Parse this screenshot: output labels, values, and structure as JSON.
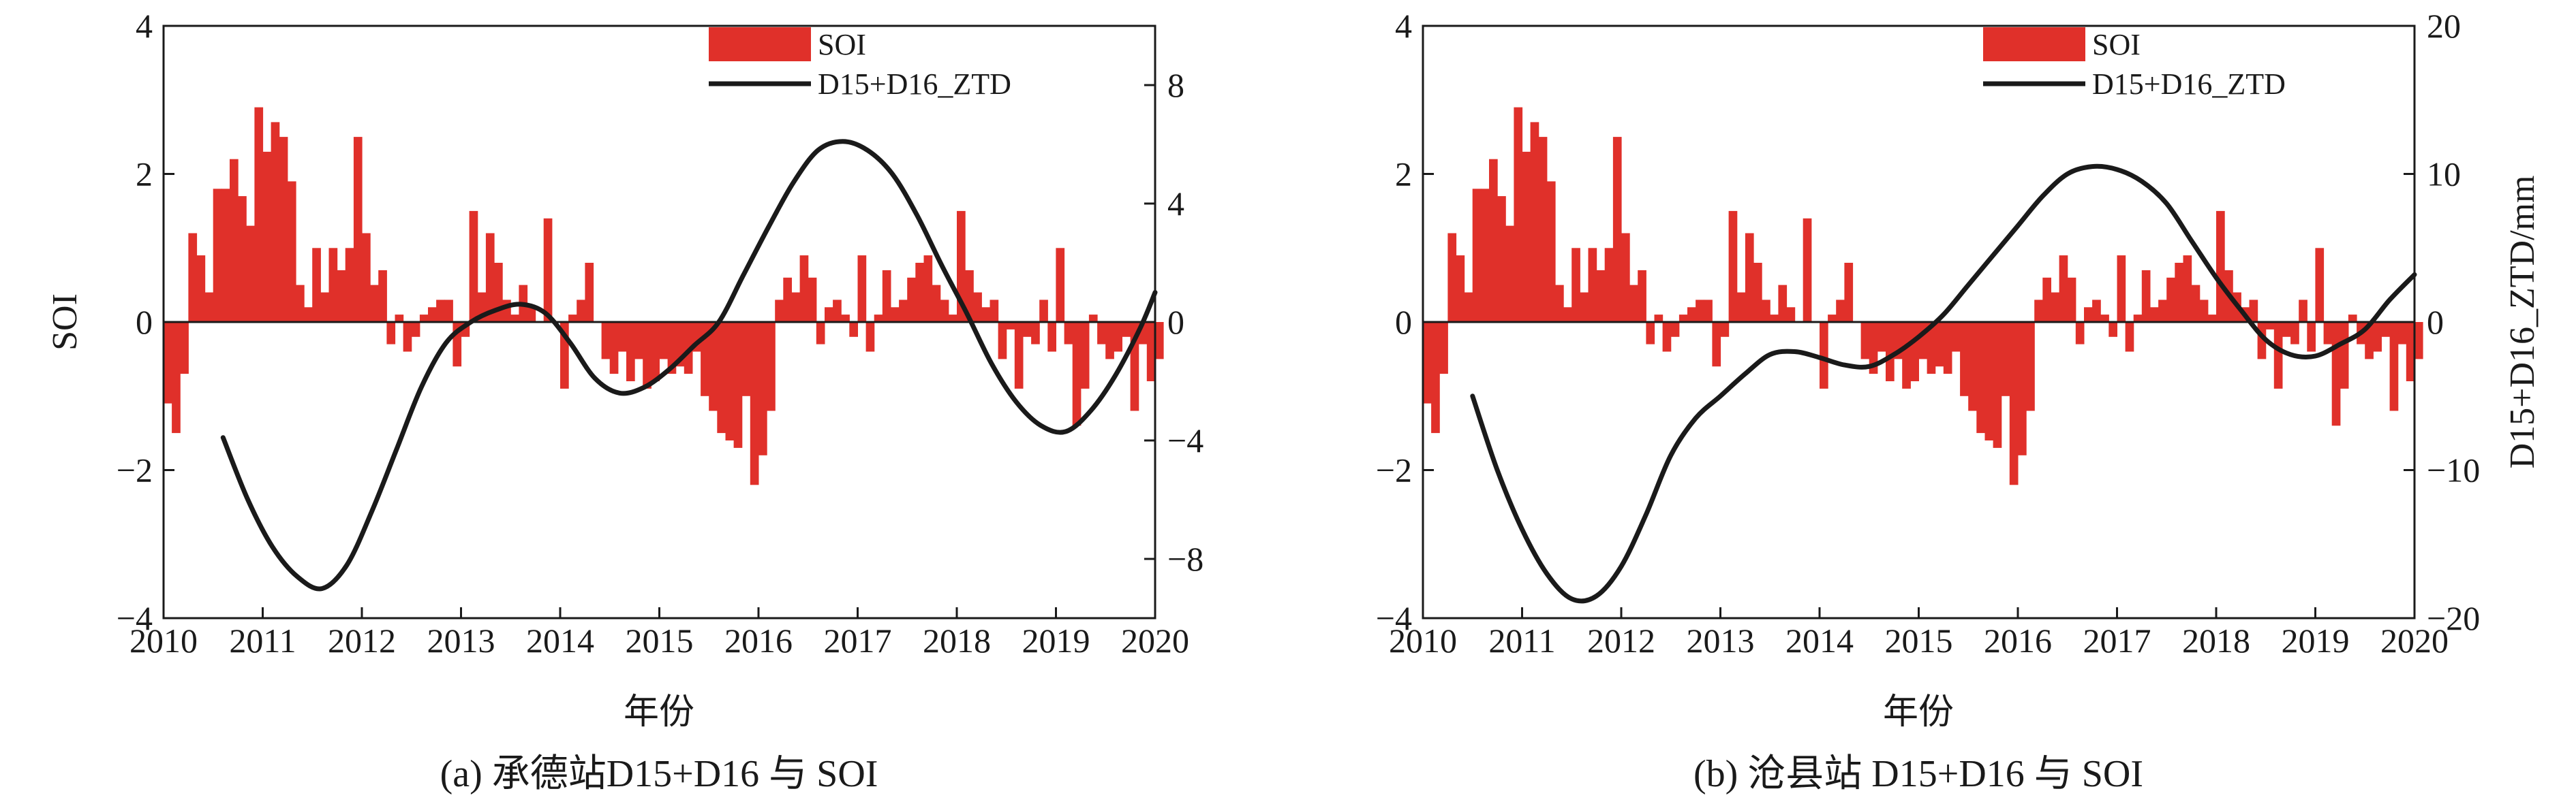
{
  "chart_data": [
    {
      "type": "bar+line",
      "caption": "(a) 承德站D15+D16 与 SOI",
      "xlabel": "年份",
      "ylabel_left": "SOI",
      "ylabel_right": "",
      "x_ticks": [
        "2010",
        "2011",
        "2012",
        "2013",
        "2014",
        "2015",
        "2016",
        "2017",
        "2018",
        "2019",
        "2020"
      ],
      "xlim": [
        2010,
        2020
      ],
      "ylim_left": [
        -4,
        4
      ],
      "y_ticks_left": [
        {
          "v": 4,
          "label": "4"
        },
        {
          "v": 2,
          "label": "2"
        },
        {
          "v": 0,
          "label": "0"
        },
        {
          "v": -2,
          "label": "−2"
        },
        {
          "v": -4,
          "label": "−4"
        }
      ],
      "ylim_right": [
        -10,
        10
      ],
      "y_ticks_right": [
        {
          "v": 8,
          "label": "8"
        },
        {
          "v": 4,
          "label": "4"
        },
        {
          "v": 0,
          "label": "0"
        },
        {
          "v": -4,
          "label": "−4"
        },
        {
          "v": -8,
          "label": "−8"
        }
      ],
      "legend": {
        "position": "top-right",
        "bar_label": "SOI",
        "line_label": "D15+D16_ZTD"
      },
      "colors": {
        "bar": "#e0302a",
        "line": "#1a1a1a"
      },
      "series": [
        {
          "name": "SOI",
          "kind": "bar",
          "axis": "left",
          "x_start": 2010.0,
          "x_step": 0.08333,
          "values": [
            -1.1,
            -1.5,
            -0.7,
            1.2,
            0.9,
            0.4,
            1.8,
            1.8,
            2.2,
            1.7,
            1.3,
            2.9,
            2.3,
            2.7,
            2.5,
            1.9,
            0.5,
            0.2,
            1.0,
            0.4,
            1.0,
            0.7,
            1.0,
            2.5,
            1.2,
            0.5,
            0.7,
            -0.3,
            0.1,
            -0.4,
            -0.2,
            0.1,
            0.2,
            0.3,
            0.3,
            -0.6,
            -0.2,
            1.5,
            0.4,
            1.2,
            0.8,
            0.3,
            0.1,
            0.5,
            0.2,
            0.0,
            1.4,
            0.0,
            -0.9,
            0.1,
            0.3,
            0.8,
            0.0,
            -0.5,
            -0.7,
            -0.4,
            -0.8,
            -0.5,
            -0.9,
            -0.8,
            -0.5,
            -0.7,
            -0.6,
            -0.7,
            -0.4,
            -1.0,
            -1.2,
            -1.5,
            -1.6,
            -1.7,
            -1.0,
            -2.2,
            -1.8,
            -1.2,
            0.3,
            0.6,
            0.4,
            0.9,
            0.6,
            -0.3,
            0.2,
            0.3,
            0.1,
            -0.2,
            0.9,
            -0.4,
            0.1,
            0.7,
            0.2,
            0.3,
            0.6,
            0.8,
            0.9,
            0.5,
            0.3,
            0.1,
            1.5,
            0.7,
            0.4,
            0.2,
            0.3,
            -0.5,
            -0.1,
            -0.9,
            -0.2,
            -0.3,
            0.3,
            -0.4,
            1.0,
            -0.3,
            -1.4,
            -0.9,
            0.1,
            -0.3,
            -0.5,
            -0.4,
            -0.2,
            -1.2,
            -0.3,
            -0.8,
            -0.5
          ]
        },
        {
          "name": "D15+D16_ZTD",
          "kind": "line",
          "axis": "right",
          "x": [
            2010.6,
            2010.85,
            2011.1,
            2011.35,
            2011.6,
            2011.85,
            2012.1,
            2012.35,
            2012.6,
            2012.85,
            2013.1,
            2013.35,
            2013.6,
            2013.85,
            2014.1,
            2014.35,
            2014.6,
            2014.85,
            2015.1,
            2015.35,
            2015.6,
            2015.85,
            2016.1,
            2016.35,
            2016.6,
            2016.85,
            2017.1,
            2017.35,
            2017.6,
            2017.85,
            2018.1,
            2018.35,
            2018.6,
            2018.85,
            2019.1,
            2019.35,
            2019.6,
            2019.85,
            2020.0
          ],
          "y": [
            -3.9,
            -6.0,
            -7.6,
            -8.6,
            -9.0,
            -8.2,
            -6.4,
            -4.3,
            -2.2,
            -0.7,
            0.0,
            0.4,
            0.6,
            0.3,
            -0.7,
            -1.9,
            -2.4,
            -2.2,
            -1.6,
            -0.8,
            0.0,
            1.6,
            3.2,
            4.7,
            5.8,
            6.1,
            5.8,
            5.0,
            3.6,
            1.9,
            0.3,
            -1.4,
            -2.7,
            -3.5,
            -3.7,
            -3.0,
            -1.8,
            -0.2,
            1.0
          ]
        }
      ]
    },
    {
      "type": "bar+line",
      "caption": "(b) 沧县站 D15+D16 与 SOI",
      "xlabel": "年份",
      "ylabel_left": "",
      "ylabel_right": "D15+D16_ZTD/mm",
      "x_ticks": [
        "2010",
        "2011",
        "2012",
        "2013",
        "2014",
        "2015",
        "2016",
        "2017",
        "2018",
        "2019",
        "2020"
      ],
      "xlim": [
        2010,
        2020
      ],
      "ylim_left": [
        -4,
        4
      ],
      "y_ticks_left": [
        {
          "v": 4,
          "label": "4"
        },
        {
          "v": 2,
          "label": "2"
        },
        {
          "v": 0,
          "label": "0"
        },
        {
          "v": -2,
          "label": "−2"
        },
        {
          "v": -4,
          "label": "−4"
        }
      ],
      "ylim_right": [
        -20,
        20
      ],
      "y_ticks_right": [
        {
          "v": 20,
          "label": "20"
        },
        {
          "v": 10,
          "label": "10"
        },
        {
          "v": 0,
          "label": "0"
        },
        {
          "v": -10,
          "label": "−10"
        },
        {
          "v": -20,
          "label": "−20"
        }
      ],
      "legend": {
        "position": "top-right",
        "bar_label": "SOI",
        "line_label": "D15+D16_ZTD"
      },
      "colors": {
        "bar": "#e0302a",
        "line": "#1a1a1a"
      },
      "series": [
        {
          "name": "SOI",
          "kind": "bar",
          "axis": "left",
          "x_start": 2010.0,
          "x_step": 0.08333,
          "values": [
            -1.1,
            -1.5,
            -0.7,
            1.2,
            0.9,
            0.4,
            1.8,
            1.8,
            2.2,
            1.7,
            1.3,
            2.9,
            2.3,
            2.7,
            2.5,
            1.9,
            0.5,
            0.2,
            1.0,
            0.4,
            1.0,
            0.7,
            1.0,
            2.5,
            1.2,
            0.5,
            0.7,
            -0.3,
            0.1,
            -0.4,
            -0.2,
            0.1,
            0.2,
            0.3,
            0.3,
            -0.6,
            -0.2,
            1.5,
            0.4,
            1.2,
            0.8,
            0.3,
            0.1,
            0.5,
            0.2,
            0.0,
            1.4,
            0.0,
            -0.9,
            0.1,
            0.3,
            0.8,
            0.0,
            -0.5,
            -0.7,
            -0.4,
            -0.8,
            -0.5,
            -0.9,
            -0.8,
            -0.5,
            -0.7,
            -0.6,
            -0.7,
            -0.4,
            -1.0,
            -1.2,
            -1.5,
            -1.6,
            -1.7,
            -1.0,
            -2.2,
            -1.8,
            -1.2,
            0.3,
            0.6,
            0.4,
            0.9,
            0.6,
            -0.3,
            0.2,
            0.3,
            0.1,
            -0.2,
            0.9,
            -0.4,
            0.1,
            0.7,
            0.2,
            0.3,
            0.6,
            0.8,
            0.9,
            0.5,
            0.3,
            0.1,
            1.5,
            0.7,
            0.4,
            0.2,
            0.3,
            -0.5,
            -0.1,
            -0.9,
            -0.2,
            -0.3,
            0.3,
            -0.4,
            1.0,
            -0.3,
            -1.4,
            -0.9,
            0.1,
            -0.3,
            -0.5,
            -0.4,
            -0.2,
            -1.2,
            -0.3,
            -0.8,
            -0.5
          ]
        },
        {
          "name": "D15+D16_ZTD",
          "kind": "line",
          "axis": "right",
          "x": [
            2010.5,
            2010.75,
            2011.0,
            2011.25,
            2011.5,
            2011.75,
            2012.0,
            2012.25,
            2012.5,
            2012.75,
            2013.0,
            2013.25,
            2013.5,
            2013.75,
            2014.0,
            2014.25,
            2014.5,
            2014.75,
            2015.0,
            2015.25,
            2015.5,
            2015.75,
            2016.0,
            2016.25,
            2016.5,
            2016.75,
            2017.0,
            2017.25,
            2017.5,
            2017.75,
            2018.0,
            2018.25,
            2018.5,
            2018.75,
            2019.0,
            2019.25,
            2019.5,
            2019.75,
            2020.0
          ],
          "y": [
            -5.0,
            -10.0,
            -14.0,
            -17.0,
            -18.7,
            -18.5,
            -16.5,
            -13.0,
            -9.0,
            -6.5,
            -5.0,
            -3.5,
            -2.2,
            -2.0,
            -2.4,
            -2.9,
            -3.0,
            -2.2,
            -1.0,
            0.5,
            2.5,
            4.5,
            6.5,
            8.5,
            10.0,
            10.5,
            10.3,
            9.5,
            8.0,
            5.5,
            3.0,
            0.8,
            -1.2,
            -2.2,
            -2.3,
            -1.5,
            -0.5,
            1.5,
            3.2
          ]
        }
      ]
    }
  ]
}
